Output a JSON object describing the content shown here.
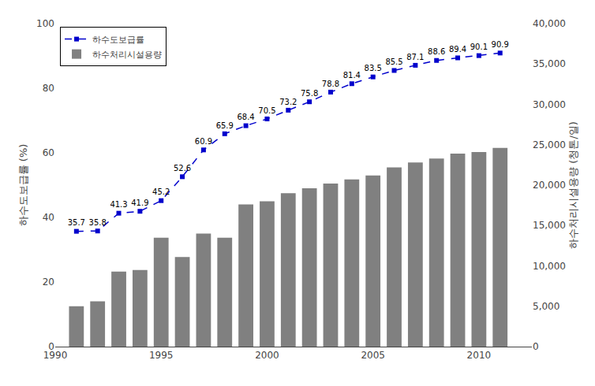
{
  "chart_data": {
    "type": "bar",
    "x": [
      1991,
      1992,
      1993,
      1994,
      1995,
      1996,
      1997,
      1998,
      1999,
      2000,
      2001,
      2002,
      2003,
      2004,
      2005,
      2006,
      2007,
      2008,
      2009,
      2010,
      2011
    ],
    "xlim": [
      1990,
      2012.5
    ],
    "xticks": [
      1990,
      1995,
      2000,
      2005,
      2010
    ],
    "ylabel": "하수도보급률 (%)",
    "y2label": "하수처리시설용량 (청톤/일)",
    "ylim": [
      0,
      100
    ],
    "yticks": [
      0,
      20,
      40,
      60,
      80,
      100
    ],
    "y2lim": [
      0,
      40000
    ],
    "y2ticks": [
      0,
      {
        "value": 5000,
        "label": "5,000"
      },
      {
        "value": 10000,
        "label": "10,000"
      },
      {
        "value": 15000,
        "label": "15,000"
      },
      {
        "value": 20000,
        "label": "20,000"
      },
      {
        "value": 25000,
        "label": "25,000"
      },
      {
        "value": 30000,
        "label": "30,000"
      },
      {
        "value": 35000,
        "label": "35,000"
      },
      {
        "value": 40000,
        "label": "40,000"
      }
    ],
    "grid": false,
    "legend": "upper left",
    "series": [
      {
        "name": "하수도보급률",
        "type": "line",
        "color": "#0000cc",
        "line_style": "dashed",
        "marker": "square",
        "data_labels": true,
        "values": [
          35.7,
          35.8,
          41.3,
          41.9,
          45.2,
          52.6,
          60.9,
          65.9,
          68.4,
          70.5,
          73.2,
          75.8,
          78.8,
          81.4,
          83.5,
          85.5,
          87.1,
          88.6,
          89.4,
          90.1,
          90.9
        ]
      },
      {
        "name": "하수처리시설용량",
        "type": "bar",
        "color": "#808080",
        "axis": "y2",
        "values": [
          5000,
          5600,
          9300,
          9500,
          13500,
          11100,
          14000,
          13500,
          17600,
          18000,
          19000,
          19600,
          20200,
          20700,
          21200,
          22200,
          22800,
          23300,
          23900,
          24100,
          24600
        ]
      }
    ]
  }
}
